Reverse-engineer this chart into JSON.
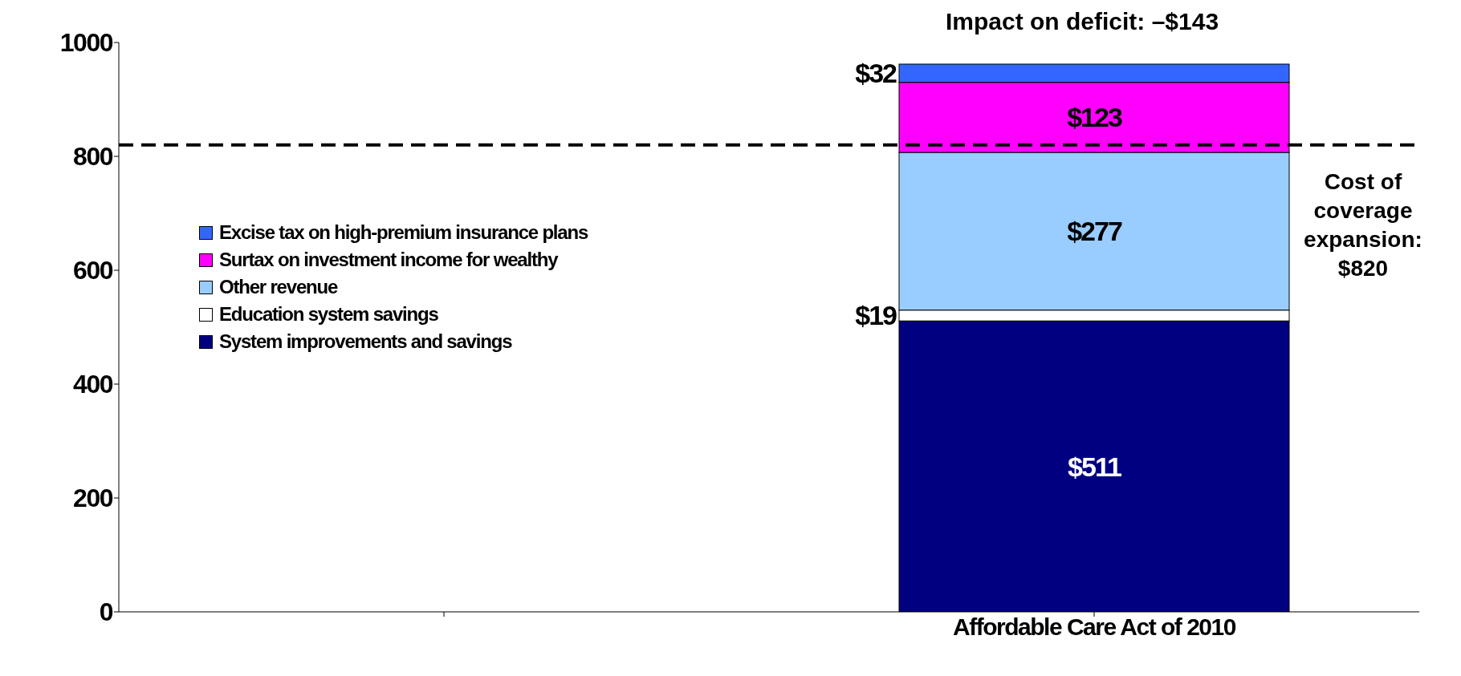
{
  "chart_data": {
    "type": "bar",
    "stacked": true,
    "categories": [
      null,
      "Affordable Care Act of 2010"
    ],
    "series": [
      {
        "name": "System improvements and savings",
        "color": "#000080",
        "values": [
          null,
          511
        ],
        "value_labels": [
          null,
          "$511"
        ]
      },
      {
        "name": "Education system savings",
        "color": "#ffffff",
        "values": [
          null,
          19
        ],
        "value_labels": [
          null,
          "$19"
        ]
      },
      {
        "name": "Other revenue",
        "color": "#99ccff",
        "values": [
          null,
          277
        ],
        "value_labels": [
          null,
          "$277"
        ]
      },
      {
        "name": "Surtax on investment income for wealthy",
        "color": "#ff00ff",
        "values": [
          null,
          123
        ],
        "value_labels": [
          null,
          "$123"
        ]
      },
      {
        "name": "Excise tax on high-premium insurance plans",
        "color": "#3366ff",
        "values": [
          null,
          32
        ],
        "value_labels": [
          null,
          "$32"
        ]
      }
    ],
    "ylim": [
      0,
      1000
    ],
    "yticks": [
      0,
      200,
      400,
      600,
      800,
      1000
    ],
    "grid": false,
    "legend": "left",
    "ref_lines": [
      {
        "axis": "y",
        "value": 820,
        "label": "Cost of coverage expansion: $820",
        "line_style": "dashed",
        "color": "#000000"
      }
    ],
    "annotations": [
      "Impact on deficit: –$143"
    ]
  }
}
